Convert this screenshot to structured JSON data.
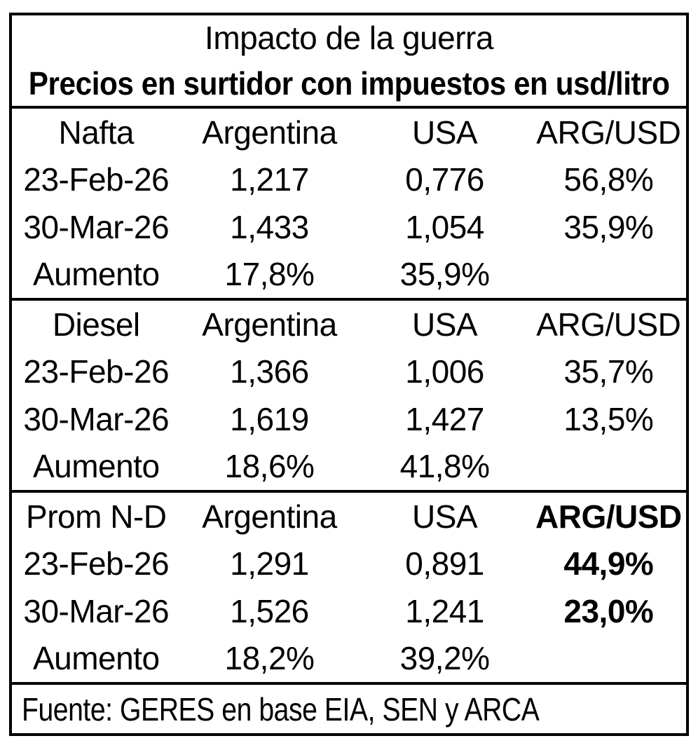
{
  "header": {
    "title": "Impacto de la guerra",
    "subtitle": "Precios en surtidor con impuestos en usd/litro"
  },
  "table": {
    "sections": [
      {
        "name": "Nafta",
        "headers": {
          "col1": "Argentina",
          "col2": "USA",
          "col3": "ARG/USD"
        },
        "rows": [
          {
            "label": "23-Feb-26",
            "col1": "1,217",
            "col2": "0,776",
            "col3": "56,8%"
          },
          {
            "label": "30-Mar-26",
            "col1": "1,433",
            "col2": "1,054",
            "col3": "35,9%"
          },
          {
            "label": "Aumento",
            "col1": "17,8%",
            "col2": "35,9%",
            "col3": ""
          }
        ]
      },
      {
        "name": "Diesel",
        "headers": {
          "col1": "Argentina",
          "col2": "USA",
          "col3": "ARG/USD"
        },
        "rows": [
          {
            "label": "23-Feb-26",
            "col1": "1,366",
            "col2": "1,006",
            "col3": "35,7%"
          },
          {
            "label": "30-Mar-26",
            "col1": "1,619",
            "col2": "1,427",
            "col3": "13,5%"
          },
          {
            "label": "Aumento",
            "col1": "18,6%",
            "col2": "41,8%",
            "col3": ""
          }
        ]
      },
      {
        "name": "Prom N-D",
        "headers": {
          "col1": "Argentina",
          "col2": "USA",
          "col3": "ARG/USD"
        },
        "rows": [
          {
            "label": "23-Feb-26",
            "col1": "1,291",
            "col2": "0,891",
            "col3": "44,9%"
          },
          {
            "label": "30-Mar-26",
            "col1": "1,526",
            "col2": "1,241",
            "col3": "23,0%"
          },
          {
            "label": "Aumento",
            "col1": "18,2%",
            "col2": "39,2%",
            "col3": ""
          }
        ]
      }
    ]
  },
  "footer": {
    "source": "Fuente: GERES en base EIA, SEN y ARCA"
  },
  "colors": {
    "text": "#000000",
    "border": "#000000",
    "background": "#ffffff"
  },
  "chart_data": {
    "type": "table",
    "title": "Impacto de la guerra",
    "subtitle": "Precios en surtidor con impuestos en usd/litro",
    "decimal_style": "comma",
    "columns": [
      "",
      "Argentina",
      "USA",
      "ARG/USD"
    ],
    "sections": [
      {
        "category": "Nafta",
        "rows": [
          {
            "fecha": "23-Feb-26",
            "argentina": 1.217,
            "usa": 0.776,
            "arg_usd_pct": 56.8
          },
          {
            "fecha": "30-Mar-26",
            "argentina": 1.433,
            "usa": 1.054,
            "arg_usd_pct": 35.9
          },
          {
            "fecha": "Aumento",
            "argentina_pct": 17.8,
            "usa_pct": 35.9,
            "arg_usd_pct": null
          }
        ]
      },
      {
        "category": "Diesel",
        "rows": [
          {
            "fecha": "23-Feb-26",
            "argentina": 1.366,
            "usa": 1.006,
            "arg_usd_pct": 35.7
          },
          {
            "fecha": "30-Mar-26",
            "argentina": 1.619,
            "usa": 1.427,
            "arg_usd_pct": 13.5
          },
          {
            "fecha": "Aumento",
            "argentina_pct": 18.6,
            "usa_pct": 41.8,
            "arg_usd_pct": null
          }
        ]
      },
      {
        "category": "Prom N-D",
        "emphasized_column": "ARG/USD",
        "rows": [
          {
            "fecha": "23-Feb-26",
            "argentina": 1.291,
            "usa": 0.891,
            "arg_usd_pct": 44.9
          },
          {
            "fecha": "30-Mar-26",
            "argentina": 1.526,
            "usa": 1.241,
            "arg_usd_pct": 23.0
          },
          {
            "fecha": "Aumento",
            "argentina_pct": 18.2,
            "usa_pct": 39.2,
            "arg_usd_pct": null
          }
        ]
      }
    ],
    "source": "Fuente: GERES en base EIA, SEN y ARCA"
  }
}
